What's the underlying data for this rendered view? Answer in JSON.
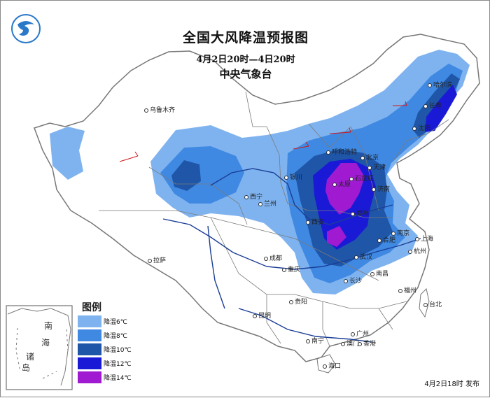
{
  "title": "全国大风降温预报图",
  "period": "4月2日20时—4日20时",
  "agency": "中央气象台",
  "issued": "4月2日18时 发布",
  "legend": {
    "title": "图例",
    "items": [
      {
        "label": "降温6℃",
        "color": "#7fb3ef"
      },
      {
        "label": "降温8℃",
        "color": "#3f89e3"
      },
      {
        "label": "降温10℃",
        "color": "#1f56a8"
      },
      {
        "label": "降温12℃",
        "color": "#1a1ad6"
      },
      {
        "label": "降温14℃",
        "color": "#a01ad2"
      }
    ]
  },
  "cities": {
    "urumqi": "乌鲁木齐",
    "lhasa": "拉萨",
    "xining": "西宁",
    "lanzhou": "兰州",
    "yinchuan": "银川",
    "hohhot": "呼和浩特",
    "beijing": "北京",
    "tianjin": "天津",
    "shijiazhuang": "石家庄",
    "taiyuan": "太原",
    "jinan": "济南",
    "zhengzhou": "郑州",
    "xian": "西安",
    "hefei": "合肥",
    "nanjing": "南京",
    "shanghai": "上海",
    "hangzhou": "杭州",
    "wuhan": "武汉",
    "changsha": "长沙",
    "nanchang": "南昌",
    "chengdu": "成都",
    "chongqing": "重庆",
    "guiyang": "贵阳",
    "kunming": "昆明",
    "nanning": "南宁",
    "guangzhou": "广州",
    "hongkong": "香港",
    "macau": "澳门",
    "haikou": "海口",
    "taipei": "台北",
    "fuzhou": "福州",
    "harbin": "哈尔滨",
    "changchun": "长春",
    "shenyang": "沈阳"
  },
  "inset": {
    "sea1": "南",
    "sea2": "海",
    "isl1": "诸",
    "isl2": "岛"
  }
}
